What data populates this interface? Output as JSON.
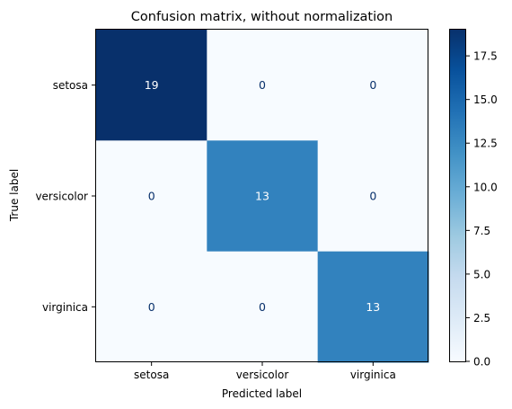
{
  "chart_data": {
    "type": "heatmap",
    "title": "Confusion matrix, without normalization",
    "xlabel": "Predicted label",
    "ylabel": "True label",
    "x_categories": [
      "setosa",
      "versicolor",
      "virginica"
    ],
    "y_categories": [
      "setosa",
      "versicolor",
      "virginica"
    ],
    "values": [
      [
        19,
        0,
        0
      ],
      [
        0,
        13,
        0
      ],
      [
        0,
        0,
        13
      ]
    ],
    "colormap": "Blues",
    "colorbar": {
      "range": [
        0,
        19
      ],
      "ticks": [
        0.0,
        2.5,
        5.0,
        7.5,
        10.0,
        12.5,
        15.0,
        17.5
      ],
      "tick_labels": [
        "0.0",
        "2.5",
        "5.0",
        "7.5",
        "10.0",
        "12.5",
        "15.0",
        "17.5"
      ]
    },
    "grid": false,
    "colors": {
      "low": "#f7fbff",
      "high": "#08306b",
      "text_on_dark": "#ffffff",
      "text_on_light": "#08306b"
    }
  }
}
